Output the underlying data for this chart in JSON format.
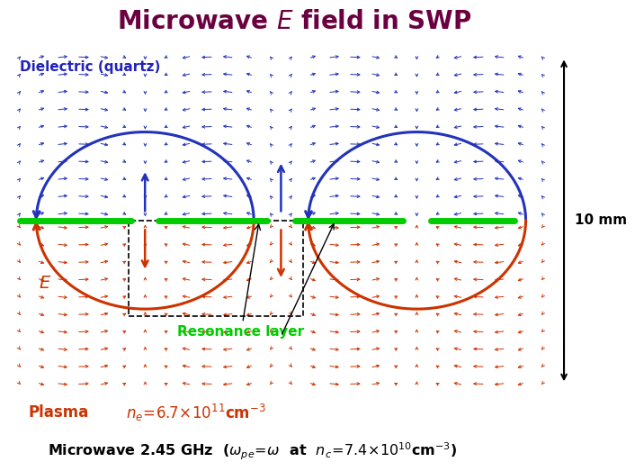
{
  "title": "Microwave $\\mathit{E}$ field in SWP",
  "title_color": "#6B0040",
  "title_fontsize": 20,
  "bg_color": "#FFFFFF",
  "plot_bg_color": "#FAFAF8",
  "dielectric_label": "Dielectric (quartz)",
  "dielectric_color": "#2222BB",
  "plasma_label": "Plasma",
  "plasma_color": "#CC3300",
  "resonance_label": "Resonance layer",
  "resonance_color": "#00CC00",
  "E_label": "$\\mathit{E}$",
  "E_color": "#CC3300",
  "dim_label": "10 mm",
  "dim_color": "#000000",
  "bottom_text1_color": "#CC3300",
  "bottom_text2_color": "#000000",
  "arrow_color_dielectric": "#2233BB",
  "arrow_color_plasma": "#CC3300",
  "loop_color_dielectric": "#2233BB",
  "loop_color_plasma": "#CC3300"
}
